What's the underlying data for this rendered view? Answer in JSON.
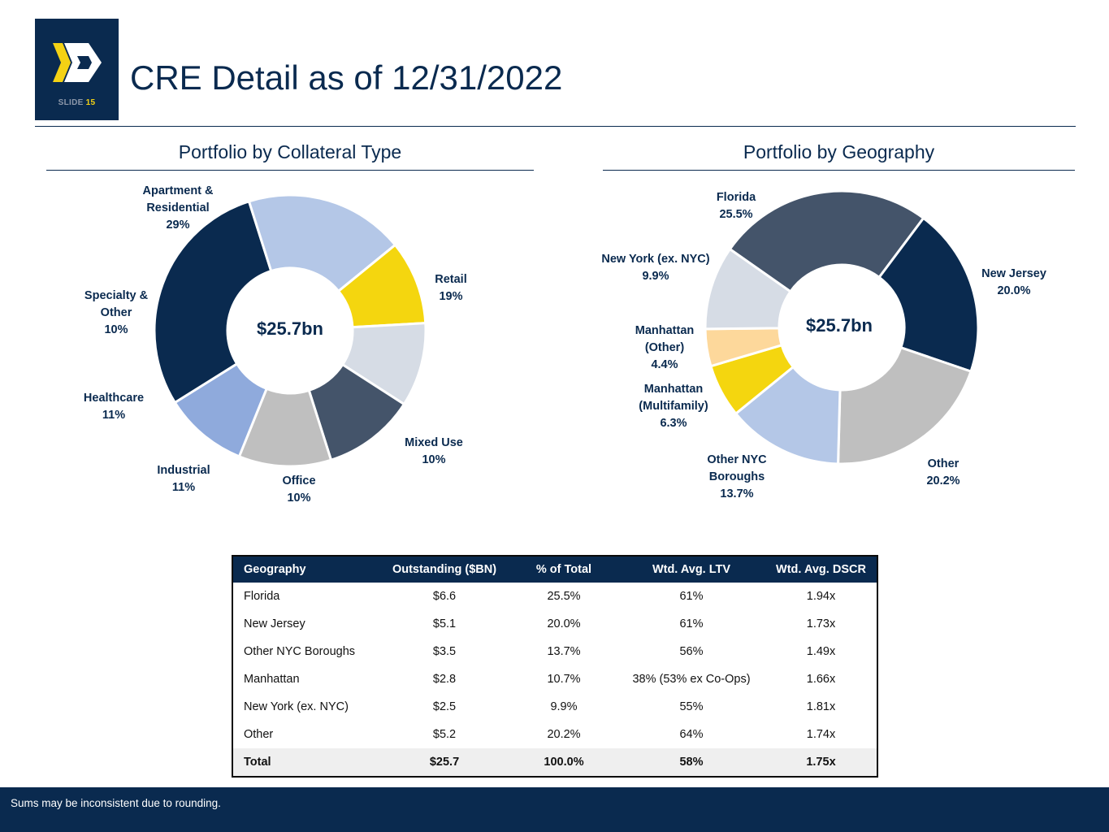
{
  "slide": {
    "label": "SLIDE",
    "number": "15",
    "title": "CRE Detail as of 12/31/2022"
  },
  "colors": {
    "navy": "#0a2a4f",
    "gold": "#f4d214"
  },
  "chart_data": [
    {
      "type": "pie",
      "title": "Portfolio by Collateral Type",
      "center_label": "$25.7bn",
      "slices": [
        {
          "name": [
            "Apartment &",
            "Residential"
          ],
          "pct_label": "29%",
          "value": 29,
          "color": "#0a2a4f"
        },
        {
          "name": [
            "Retail"
          ],
          "pct_label": "19%",
          "value": 19,
          "color": "#b4c7e7"
        },
        {
          "name": [
            "Mixed Use"
          ],
          "pct_label": "10%",
          "value": 10,
          "color": "#f4d60f"
        },
        {
          "name": [
            "Office"
          ],
          "pct_label": "10%",
          "value": 10,
          "color": "#d6dce5"
        },
        {
          "name": [
            "Industrial"
          ],
          "pct_label": "11%",
          "value": 11,
          "color": "#44546a"
        },
        {
          "name": [
            "Healthcare"
          ],
          "pct_label": "11%",
          "value": 11,
          "color": "#bfbfbf"
        },
        {
          "name": [
            "Specialty &",
            "Other"
          ],
          "pct_label": "10%",
          "value": 10,
          "color": "#8faadc"
        }
      ]
    },
    {
      "type": "pie",
      "title": "Portfolio by Geography",
      "center_label": "$25.7bn",
      "slices": [
        {
          "name": [
            "Florida"
          ],
          "pct_label": "25.5%",
          "value": 25.5,
          "color": "#44546a"
        },
        {
          "name": [
            "New Jersey"
          ],
          "pct_label": "20.0%",
          "value": 20.0,
          "color": "#0a2a4f"
        },
        {
          "name": [
            "Other"
          ],
          "pct_label": "20.2%",
          "value": 20.2,
          "color": "#bfbfbf"
        },
        {
          "name": [
            "Other NYC",
            "Boroughs"
          ],
          "pct_label": "13.7%",
          "value": 13.7,
          "color": "#b4c7e7"
        },
        {
          "name": [
            "Manhattan",
            "(Multifamily)"
          ],
          "pct_label": "6.3%",
          "value": 6.3,
          "color": "#f4d60f"
        },
        {
          "name": [
            "Manhattan",
            "(Other)"
          ],
          "pct_label": "4.4%",
          "value": 4.4,
          "color": "#fdd89b"
        },
        {
          "name": [
            "New York (ex. NYC)"
          ],
          "pct_label": "9.9%",
          "value": 9.9,
          "color": "#d6dce5"
        }
      ]
    }
  ],
  "table": {
    "headers": [
      "Geography",
      "Outstanding ($BN)",
      "% of Total",
      "Wtd. Avg. LTV",
      "Wtd. Avg. DSCR"
    ],
    "rows": [
      [
        "Florida",
        "$6.6",
        "25.5%",
        "61%",
        "1.94x"
      ],
      [
        "New Jersey",
        "$5.1",
        "20.0%",
        "61%",
        "1.73x"
      ],
      [
        "Other NYC Boroughs",
        "$3.5",
        "13.7%",
        "56%",
        "1.49x"
      ],
      [
        "Manhattan",
        "$2.8",
        "10.7%",
        "38% (53% ex Co-Ops)",
        "1.66x"
      ],
      [
        "New York (ex. NYC)",
        "$2.5",
        "9.9%",
        "55%",
        "1.81x"
      ],
      [
        "Other",
        "$5.2",
        "20.2%",
        "64%",
        "1.74x"
      ]
    ],
    "total": [
      "Total",
      "$25.7",
      "100.0%",
      "58%",
      "1.75x"
    ]
  },
  "footer": {
    "note": "Sums may be inconsistent due to rounding."
  }
}
